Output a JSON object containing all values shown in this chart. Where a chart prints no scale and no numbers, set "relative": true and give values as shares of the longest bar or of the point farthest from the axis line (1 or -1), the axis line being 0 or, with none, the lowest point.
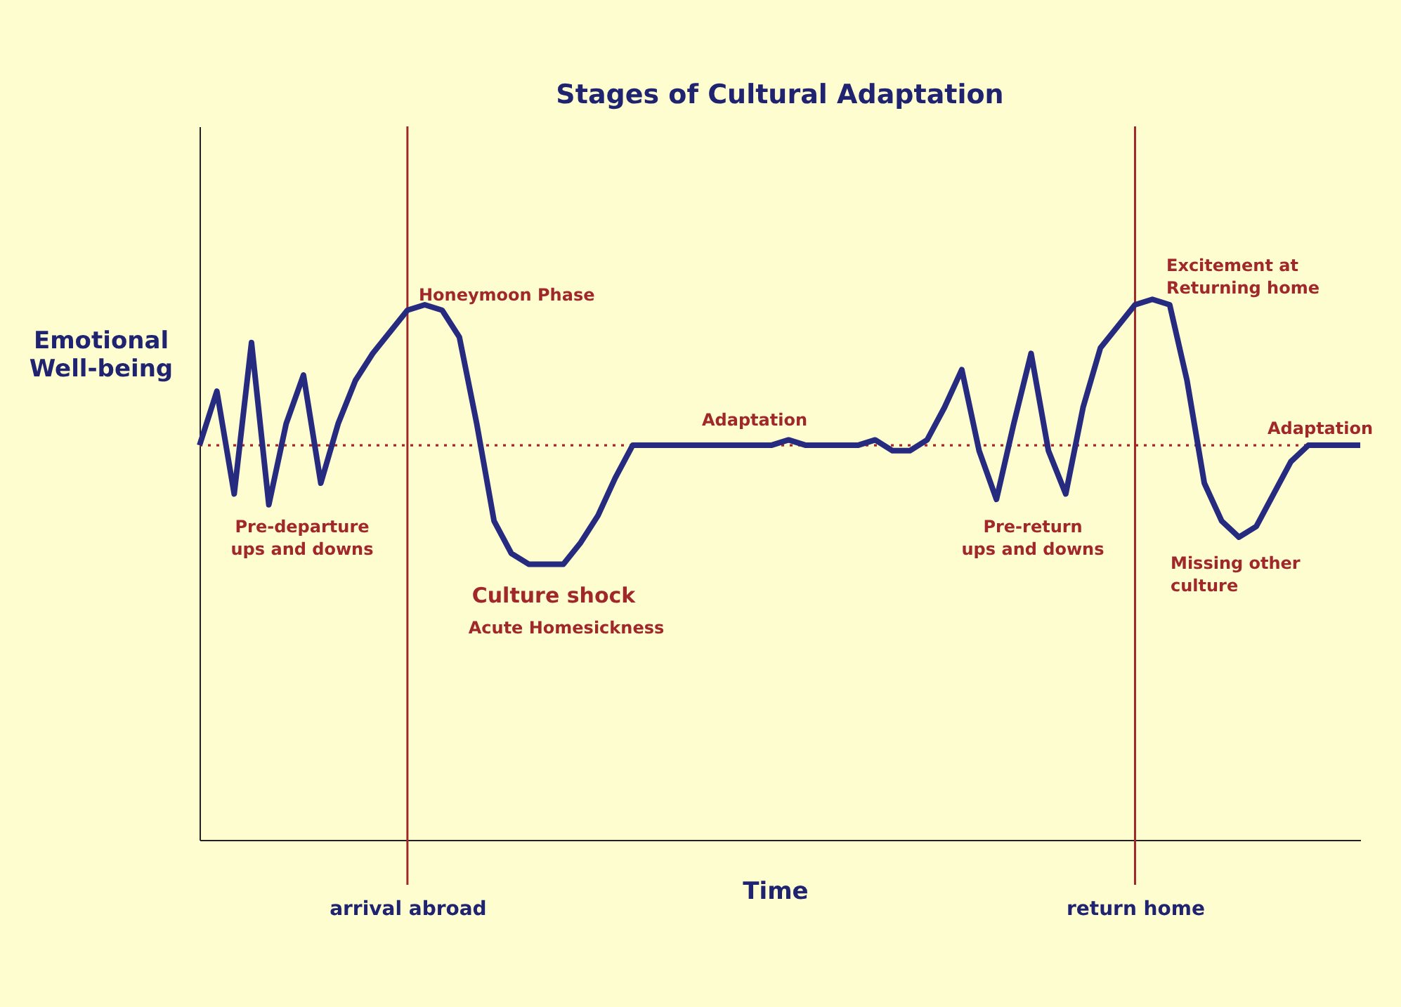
{
  "chart_data": {
    "type": "line",
    "relative": true,
    "title": "Stages of Cultural Adaptation",
    "xlabel": "Time",
    "ylabel": "Emotional\nWell-being",
    "categories": [
      null,
      null,
      null,
      null,
      null,
      null,
      null,
      null,
      null,
      null,
      null,
      null,
      "arrival abroad",
      null,
      null,
      null,
      null,
      null,
      null,
      null,
      null,
      null,
      null,
      null,
      null,
      null,
      null,
      null,
      null,
      null,
      null,
      null,
      null,
      null,
      null,
      null,
      null,
      null,
      null,
      null,
      null,
      null,
      null,
      null,
      null,
      null,
      null,
      null,
      null,
      null,
      null,
      null,
      null,
      null,
      "return home",
      null,
      null,
      null,
      null,
      null,
      null,
      null,
      null,
      null,
      null,
      null,
      null,
      null
    ],
    "series": [
      {
        "color": "#262b80",
        "values": [
          0.73,
          0.83,
          0.64,
          0.92,
          0.62,
          0.77,
          0.86,
          0.66,
          0.77,
          0.85,
          0.9,
          0.94,
          0.98,
          0.99,
          0.98,
          0.93,
          0.77,
          0.59,
          0.53,
          0.51,
          0.51,
          0.51,
          0.55,
          0.6,
          0.67,
          0.73,
          0.73,
          0.73,
          0.73,
          0.73,
          0.73,
          0.73,
          0.73,
          0.73,
          0.74,
          0.73,
          0.73,
          0.73,
          0.73,
          0.74,
          0.72,
          0.72,
          0.74,
          0.8,
          0.87,
          0.72,
          0.63,
          0.77,
          0.9,
          0.72,
          0.64,
          0.8,
          0.91,
          0.95,
          0.99,
          1,
          0.99,
          0.85,
          0.66,
          0.59,
          0.56,
          0.58,
          0.64,
          0.7,
          0.73,
          0.73,
          0.73,
          0.73
        ]
      }
    ],
    "ref_lines": [
      {
        "axis": "y",
        "value": 0.73,
        "color": "#a0282a",
        "line_style": "dotted"
      },
      {
        "axis": "x",
        "value": "arrival abroad",
        "color": "#a0282a"
      },
      {
        "axis": "x",
        "value": "return home",
        "color": "#a0282a"
      }
    ],
    "annotations": [
      "Honeymoon Phase",
      "Adaptation",
      "Pre-departure\nups and downs",
      "Culture shock",
      "Acute Homesickness",
      "Pre-return\nups and downs",
      "Excitement at\nReturning home",
      "Missing other\nculture",
      "Adaptation"
    ],
    "line_style": "solid",
    "marker": "none",
    "grid": false
  }
}
